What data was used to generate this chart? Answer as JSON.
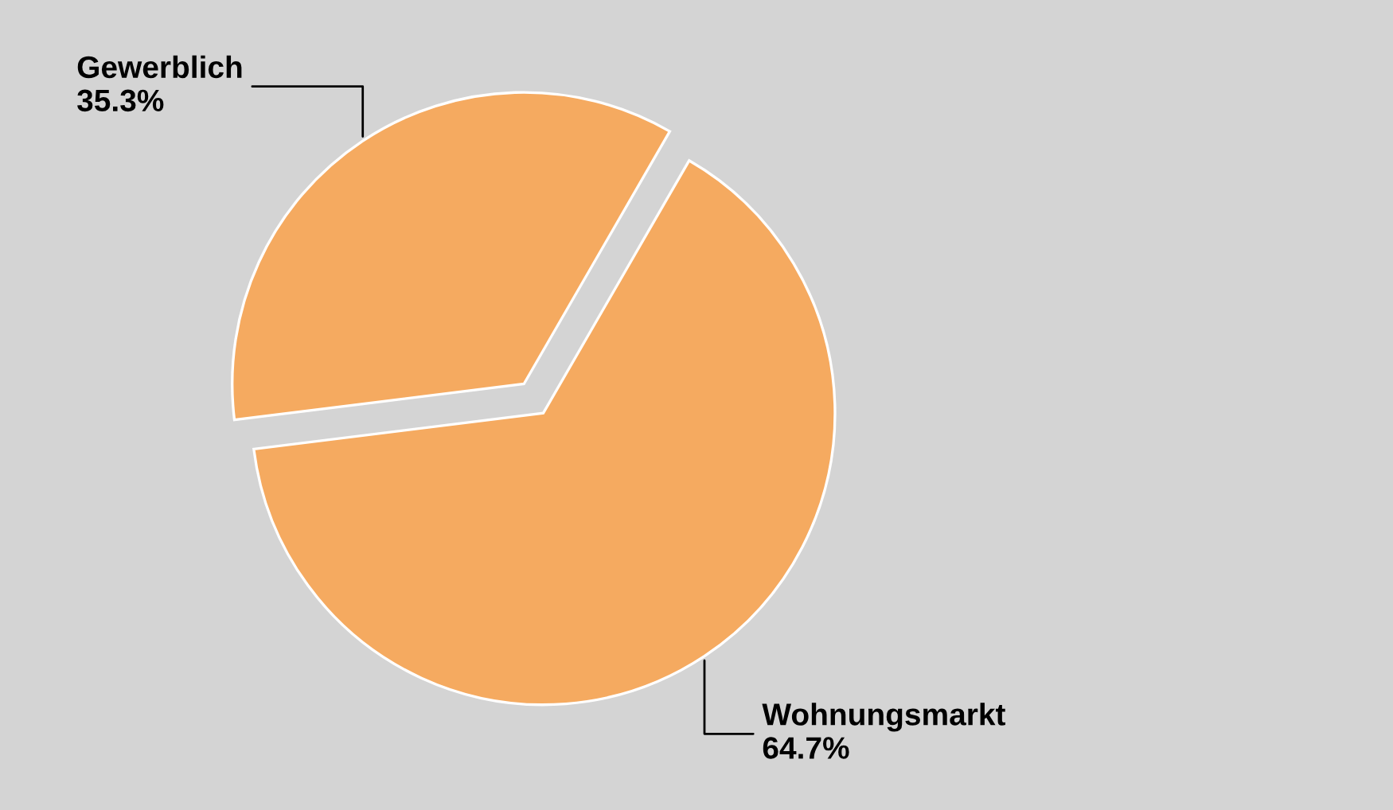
{
  "chart_data": {
    "type": "pie",
    "categories": [
      "Gewerblich",
      "Wohnungsmarkt"
    ],
    "values": [
      35.3,
      64.7
    ],
    "colors": [
      "#f5aa60",
      "#f5aa60"
    ],
    "value_labels": [
      "35.3%",
      "64.7%"
    ]
  }
}
